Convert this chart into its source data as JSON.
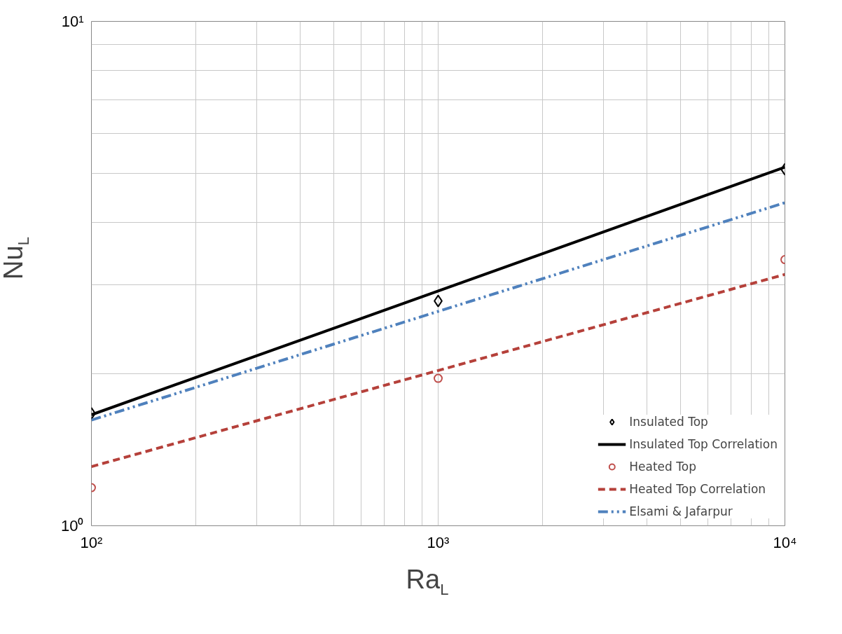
{
  "chart_data": {
    "type": "line",
    "xlabel": "Ra$_{L}$",
    "ylabel": "Nu$_{L}$",
    "log": "xy",
    "grid": true,
    "legend": "bottom right",
    "xlim": [
      100,
      10000
    ],
    "ylim": [
      1,
      10
    ],
    "xticks": [
      {
        "value": 100,
        "label": "10²"
      },
      {
        "value": 1000,
        "label": "10³"
      },
      {
        "value": 10000,
        "label": "10⁴"
      }
    ],
    "yticks": [
      {
        "value": 1,
        "label": "10⁰"
      },
      {
        "value": 10,
        "label": "10¹"
      }
    ],
    "series": [
      {
        "name": "Insulated Top",
        "type": "scatter",
        "marker": "diamond",
        "color": "#000000",
        "x": [
          100,
          1000,
          10000
        ],
        "values": [
          1.67,
          2.79,
          5.09
        ]
      },
      {
        "name": "Insulated Top Correlation",
        "line_style": "solid",
        "color": "#000000",
        "x": [
          100,
          10000
        ],
        "values": [
          1.66,
          5.14
        ]
      },
      {
        "name": "Heated Top",
        "type": "scatter",
        "marker": "circle",
        "color": "#c0504d",
        "x": [
          100,
          1000,
          10000
        ],
        "values": [
          1.19,
          1.96,
          3.37
        ]
      },
      {
        "name": "Heated Top Correlation",
        "line_style": "dashed",
        "color": "#b5403a",
        "x": [
          100,
          10000
        ],
        "values": [
          1.31,
          3.15
        ]
      },
      {
        "name": "Elsami & Jafarpur",
        "line_style": "dashdot",
        "color": "#4f81bd",
        "x": [
          100,
          10000
        ],
        "values": [
          1.62,
          4.37
        ]
      }
    ]
  }
}
